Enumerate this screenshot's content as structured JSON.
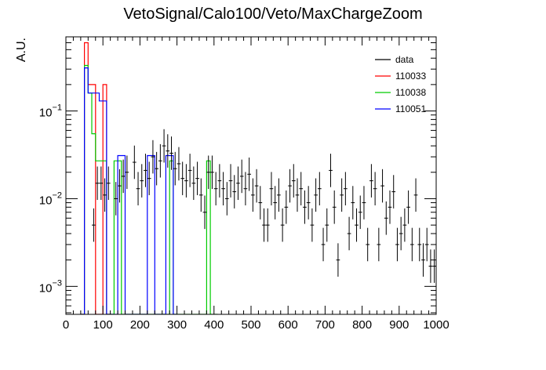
{
  "chart_data": {
    "type": "histogram",
    "title": "VetoSignal/Calo100/Veto/MaxChargeZoom",
    "xlabel": "",
    "ylabel": "A.U.",
    "xlim": [
      0,
      1000
    ],
    "ylim": [
      0.00048,
      0.7
    ],
    "yscale": "log",
    "grid": false,
    "legend_position": "top-right",
    "x_tick_labels": [
      "0",
      "100",
      "200",
      "300",
      "400",
      "500",
      "600",
      "700",
      "800",
      "900",
      "1000"
    ],
    "y_tick_labels": [
      {
        "value": 0.001,
        "base": "10",
        "exp": "−3"
      },
      {
        "value": 0.01,
        "base": "10",
        "exp": "−2"
      },
      {
        "value": 0.1,
        "base": "10",
        "exp": "−1"
      }
    ],
    "legend": [
      {
        "label": "data",
        "color": "#000000"
      },
      {
        "label": "110033",
        "color": "#ff0000"
      },
      {
        "label": "110038",
        "color": "#00cc00"
      },
      {
        "label": "110051",
        "color": "#0000ff"
      }
    ],
    "series": [
      {
        "name": "data",
        "style": "errorbars",
        "color": "#000000",
        "bin_width": 10,
        "points": [
          [
            75,
            0.005
          ],
          [
            85,
            0.015
          ],
          [
            95,
            0.015
          ],
          [
            105,
            0.011
          ],
          [
            115,
            0.015
          ],
          [
            135,
            0.01
          ],
          [
            145,
            0.014
          ],
          [
            155,
            0.018
          ],
          [
            165,
            0.02
          ],
          [
            185,
            0.026
          ],
          [
            195,
            0.013
          ],
          [
            205,
            0.016
          ],
          [
            215,
            0.021
          ],
          [
            225,
            0.017
          ],
          [
            235,
            0.03
          ],
          [
            245,
            0.022
          ],
          [
            255,
            0.027
          ],
          [
            265,
            0.04
          ],
          [
            275,
            0.035
          ],
          [
            285,
            0.033
          ],
          [
            295,
            0.022
          ],
          [
            305,
            0.025
          ],
          [
            315,
            0.017
          ],
          [
            325,
            0.016
          ],
          [
            335,
            0.021
          ],
          [
            345,
            0.015
          ],
          [
            355,
            0.017
          ],
          [
            365,
            0.011
          ],
          [
            375,
            0.007
          ],
          [
            385,
            0.02
          ],
          [
            395,
            0.02
          ],
          [
            405,
            0.013
          ],
          [
            415,
            0.016
          ],
          [
            425,
            0.013
          ],
          [
            435,
            0.01
          ],
          [
            445,
            0.016
          ],
          [
            455,
            0.012
          ],
          [
            465,
            0.015
          ],
          [
            475,
            0.018
          ],
          [
            485,
            0.013
          ],
          [
            495,
            0.019
          ],
          [
            505,
            0.011
          ],
          [
            515,
            0.014
          ],
          [
            525,
            0.009
          ],
          [
            535,
            0.005
          ],
          [
            545,
            0.005
          ],
          [
            555,
            0.013
          ],
          [
            565,
            0.009
          ],
          [
            575,
            0.011
          ],
          [
            585,
            0.005
          ],
          [
            595,
            0.008
          ],
          [
            605,
            0.014
          ],
          [
            615,
            0.016
          ],
          [
            625,
            0.011
          ],
          [
            635,
            0.013
          ],
          [
            645,
            0.008
          ],
          [
            655,
            0.009
          ],
          [
            665,
            0.005
          ],
          [
            675,
            0.011
          ],
          [
            685,
            0.013
          ],
          [
            695,
            0.003
          ],
          [
            705,
            0.005
          ],
          [
            715,
            0.021
          ],
          [
            725,
            0.008
          ],
          [
            735,
            0.002
          ],
          [
            745,
            0.011
          ],
          [
            755,
            0.013
          ],
          [
            765,
            0.004
          ],
          [
            775,
            0.009
          ],
          [
            785,
            0.005
          ],
          [
            795,
            0.007
          ],
          [
            805,
            0.009
          ],
          [
            815,
            0.003
          ],
          [
            825,
            0.016
          ],
          [
            835,
            0.013
          ],
          [
            845,
            0.003
          ],
          [
            855,
            0.014
          ],
          [
            865,
            0.006
          ],
          [
            875,
            0.008
          ],
          [
            885,
            0.012
          ],
          [
            895,
            0.003
          ],
          [
            905,
            0.004
          ],
          [
            915,
            0.005
          ],
          [
            925,
            0.008
          ],
          [
            935,
            0.003
          ],
          [
            945,
            0.011
          ],
          [
            955,
            0.003
          ],
          [
            965,
            0.002
          ],
          [
            975,
            0.003
          ],
          [
            985,
            0.0017
          ],
          [
            995,
            0.0017
          ]
        ]
      },
      {
        "name": "110033",
        "style": "step",
        "color": "#ff0000",
        "bins": [
          [
            40,
            50,
            0
          ],
          [
            50,
            60,
            0.6
          ],
          [
            60,
            70,
            0.2
          ],
          [
            70,
            80,
            0.2
          ],
          [
            80,
            90,
            0
          ],
          [
            90,
            100,
            0
          ],
          [
            100,
            110,
            0.2
          ],
          [
            110,
            120,
            0
          ]
        ]
      },
      {
        "name": "110038",
        "style": "step",
        "color": "#00cc00",
        "bins": [
          [
            40,
            50,
            0
          ],
          [
            50,
            60,
            0.33
          ],
          [
            60,
            70,
            0.16
          ],
          [
            70,
            80,
            0.055
          ],
          [
            80,
            90,
            0.027
          ],
          [
            90,
            100,
            0.027
          ],
          [
            100,
            110,
            0.027
          ],
          [
            110,
            120,
            0
          ],
          [
            120,
            130,
            0
          ],
          [
            130,
            140,
            0.027
          ],
          [
            140,
            150,
            0.027
          ],
          [
            150,
            160,
            0
          ],
          [
            160,
            280,
            0
          ],
          [
            280,
            290,
            0.027
          ],
          [
            290,
            300,
            0
          ],
          [
            300,
            380,
            0
          ],
          [
            380,
            390,
            0.027
          ],
          [
            390,
            400,
            0
          ],
          [
            400,
            410,
            0
          ]
        ]
      },
      {
        "name": "110051",
        "style": "step",
        "color": "#0000ff",
        "bins": [
          [
            40,
            50,
            0
          ],
          [
            50,
            60,
            0.31
          ],
          [
            60,
            70,
            0.16
          ],
          [
            70,
            80,
            0.16
          ],
          [
            80,
            90,
            0.16
          ],
          [
            90,
            100,
            0.13
          ],
          [
            100,
            110,
            0.13
          ],
          [
            110,
            140,
            0
          ],
          [
            140,
            150,
            0.031
          ],
          [
            150,
            160,
            0.031
          ],
          [
            160,
            220,
            0
          ],
          [
            220,
            230,
            0.031
          ],
          [
            230,
            240,
            0.031
          ],
          [
            240,
            270,
            0
          ],
          [
            270,
            280,
            0.031
          ],
          [
            280,
            290,
            0.031
          ],
          [
            290,
            300,
            0
          ]
        ]
      }
    ]
  }
}
